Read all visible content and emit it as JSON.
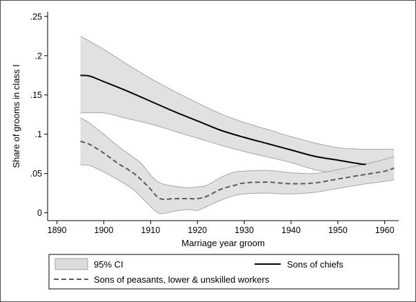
{
  "chart_data": {
    "type": "line",
    "xlabel": "Marriage year groom",
    "ylabel": "Share of grooms in class I",
    "xlim": [
      1888,
      1963
    ],
    "ylim": [
      -0.01,
      0.256
    ],
    "x_ticks": [
      1890,
      1900,
      1910,
      1920,
      1930,
      1940,
      1950,
      1960
    ],
    "x_tick_labels": [
      "1890",
      "1900",
      "1910",
      "1920",
      "1930",
      "1940",
      "1950",
      "1960"
    ],
    "y_ticks": [
      0,
      0.05,
      0.1,
      0.15,
      0.2,
      0.25
    ],
    "y_tick_labels": [
      "0",
      ".05",
      ".1",
      ".15",
      ".2",
      ".25"
    ],
    "grid": false,
    "legend": {
      "placement": "bottom",
      "entries": [
        "95% CI",
        "Sons of chiefs",
        "Sons of peasants, lower & unskilled workers"
      ]
    },
    "colors": {
      "ci_fill": "#dcdcdc",
      "ci_edge": "#a6a6a6",
      "chiefs": "#000000",
      "peasants": "#5a5a5a"
    },
    "series": [
      {
        "name": "Sons of chiefs",
        "style": "solid",
        "x": [
          1895,
          1897,
          1900,
          1905,
          1910,
          1915,
          1920,
          1925,
          1930,
          1935,
          1940,
          1945,
          1950,
          1955,
          1956
        ],
        "y": [
          0.175,
          0.174,
          0.167,
          0.155,
          0.142,
          0.129,
          0.117,
          0.105,
          0.096,
          0.088,
          0.08,
          0.072,
          0.067,
          0.062,
          0.062
        ],
        "ci_x": [
          1895,
          1900,
          1905,
          1910,
          1915,
          1920,
          1925,
          1930,
          1935,
          1940,
          1945,
          1950,
          1955,
          1962
        ],
        "ci_lower": [
          0.127,
          0.127,
          0.12,
          0.113,
          0.104,
          0.095,
          0.086,
          0.078,
          0.071,
          0.064,
          0.055,
          0.05,
          0.047,
          0.043
        ],
        "ci_upper": [
          0.225,
          0.208,
          0.189,
          0.171,
          0.155,
          0.14,
          0.126,
          0.115,
          0.106,
          0.097,
          0.089,
          0.083,
          0.081,
          0.081
        ]
      },
      {
        "name": "Sons of peasants, lower & unskilled workers",
        "style": "dashed",
        "x": [
          1895,
          1897,
          1900,
          1903,
          1906,
          1908,
          1910,
          1912,
          1915,
          1918,
          1920,
          1922,
          1925,
          1928,
          1930,
          1935,
          1940,
          1945,
          1950,
          1955,
          1960,
          1962
        ],
        "y": [
          0.091,
          0.087,
          0.076,
          0.063,
          0.052,
          0.042,
          0.03,
          0.018,
          0.018,
          0.018,
          0.018,
          0.021,
          0.03,
          0.035,
          0.038,
          0.039,
          0.037,
          0.038,
          0.043,
          0.048,
          0.053,
          0.057
        ],
        "ci_x": [
          1895,
          1897,
          1900,
          1903,
          1906,
          1908,
          1910,
          1912,
          1915,
          1918,
          1920,
          1922,
          1925,
          1928,
          1930,
          1935,
          1940,
          1945,
          1950,
          1955,
          1960,
          1962
        ],
        "ci_lower": [
          0.061,
          0.06,
          0.052,
          0.042,
          0.031,
          0.02,
          0.008,
          -0.001,
          0.002,
          0.004,
          0.003,
          0.008,
          0.016,
          0.022,
          0.024,
          0.025,
          0.024,
          0.026,
          0.031,
          0.036,
          0.04,
          0.042
        ],
        "ci_upper": [
          0.121,
          0.114,
          0.1,
          0.085,
          0.072,
          0.063,
          0.048,
          0.038,
          0.034,
          0.032,
          0.033,
          0.035,
          0.045,
          0.052,
          0.053,
          0.054,
          0.051,
          0.05,
          0.055,
          0.061,
          0.068,
          0.072
        ]
      }
    ]
  }
}
